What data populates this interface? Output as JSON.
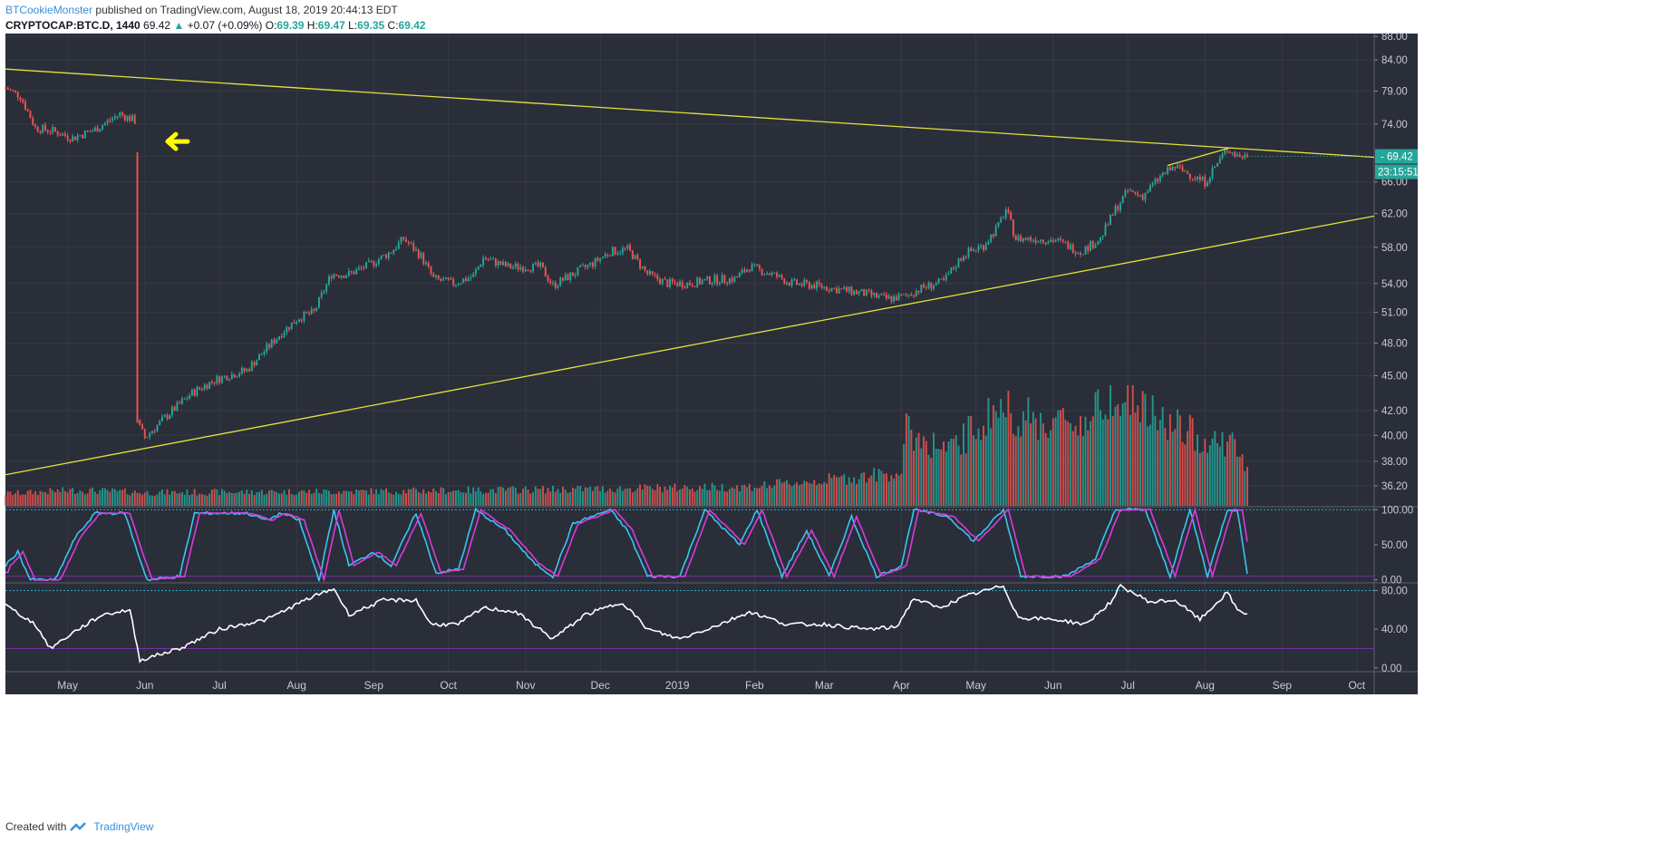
{
  "header": {
    "author": "BTCookieMonster",
    "published": "published on TradingView.com, August 18, 2019 20:44:13 EDT",
    "symbol": "CRYPTOCAP:BTC.D, 1440",
    "last": "69.42",
    "change_arrow": "▲",
    "change": "+0.07 (+0.09%)",
    "o_label": "O:",
    "o": "69.39",
    "h_label": "H:",
    "h": "69.47",
    "l_label": "L:",
    "l": "69.35",
    "c_label": "C:",
    "c": "69.42"
  },
  "footer": {
    "created_with": "Created with",
    "brand": "TradingView",
    "logo_icon": "tradingview-logo-icon"
  },
  "price_tag": {
    "value": "69.42",
    "countdown": "23:15:51",
    "color": "#26a69a"
  },
  "colors": {
    "background": "#2a2e39",
    "up": "#26a69a",
    "down": "#ef5350",
    "trendline": "#e3e33a",
    "stoch_k": "#39c6f0",
    "stoch_d": "#d93ae0",
    "rsi": "#ffffff",
    "arrow": "#ffff00"
  },
  "annotation": {
    "type": "arrow",
    "icon": "left-arrow-icon",
    "color": "#ffff00"
  },
  "chart_data": {
    "type": "candlestick",
    "title": "",
    "y_scale": "log",
    "ylim": [
      34.8,
      88.5
    ],
    "y_ticks": [
      "88.00",
      "84.00",
      "79.00",
      "74.00",
      "69.42",
      "66.00",
      "62.00",
      "58.00",
      "54.00",
      "51.00",
      "48.00",
      "45.00",
      "42.00",
      "40.00",
      "38.00",
      "36.20"
    ],
    "x_ticks": [
      "May",
      "Jun",
      "Jul",
      "Aug",
      "Sep",
      "Oct",
      "Nov",
      "Dec",
      "2019",
      "Feb",
      "Mar",
      "Apr",
      "May",
      "Jun",
      "Jul",
      "Aug",
      "Sep",
      "Oct"
    ],
    "x_ticks_dates": [
      "2018-05-01",
      "2018-06-01",
      "2018-07-01",
      "2018-08-01",
      "2018-09-01",
      "2018-10-01",
      "2018-11-01",
      "2018-12-01",
      "2019-01-01",
      "2019-02-01",
      "2019-03-01",
      "2019-04-01",
      "2019-05-01",
      "2019-06-01",
      "2019-07-01",
      "2019-08-01",
      "2019-09-01",
      "2019-10-01"
    ],
    "x_range": [
      "2018-04-06",
      "2019-10-08"
    ],
    "price_series": {
      "name": "BTC.D",
      "anchors": [
        [
          "2018-04-06",
          79.5
        ],
        [
          "2018-04-12",
          78.2
        ],
        [
          "2018-04-18",
          73.5
        ],
        [
          "2018-04-25",
          73.0
        ],
        [
          "2018-05-03",
          72.0
        ],
        [
          "2018-05-12",
          73.2
        ],
        [
          "2018-05-22",
          75.5
        ],
        [
          "2018-05-28",
          74.5
        ],
        [
          "2018-05-29",
          41.0
        ],
        [
          "2018-06-01",
          39.8
        ],
        [
          "2018-06-10",
          41.6
        ],
        [
          "2018-06-20",
          43.5
        ],
        [
          "2018-06-28",
          44.5
        ],
        [
          "2018-07-04",
          45.0
        ],
        [
          "2018-07-12",
          45.5
        ],
        [
          "2018-07-20",
          47.5
        ],
        [
          "2018-07-26",
          49.0
        ],
        [
          "2018-08-02",
          50.5
        ],
        [
          "2018-08-08",
          51.0
        ],
        [
          "2018-08-15",
          55.0
        ],
        [
          "2018-08-22",
          55.0
        ],
        [
          "2018-08-30",
          56.0
        ],
        [
          "2018-09-08",
          57.5
        ],
        [
          "2018-09-13",
          59.0
        ],
        [
          "2018-09-20",
          57.0
        ],
        [
          "2018-09-25",
          54.5
        ],
        [
          "2018-10-03",
          54.0
        ],
        [
          "2018-10-11",
          54.8
        ],
        [
          "2018-10-15",
          56.8
        ],
        [
          "2018-10-25",
          55.8
        ],
        [
          "2018-11-07",
          55.8
        ],
        [
          "2018-11-12",
          53.8
        ],
        [
          "2018-11-20",
          55.0
        ],
        [
          "2018-11-28",
          56.2
        ],
        [
          "2018-12-05",
          57.5
        ],
        [
          "2018-12-12",
          57.8
        ],
        [
          "2018-12-20",
          55.0
        ],
        [
          "2018-12-28",
          54.0
        ],
        [
          "2019-01-06",
          54.0
        ],
        [
          "2019-01-15",
          54.4
        ],
        [
          "2019-01-24",
          54.5
        ],
        [
          "2019-01-30",
          55.8
        ],
        [
          "2019-02-08",
          55.0
        ],
        [
          "2019-02-16",
          54.0
        ],
        [
          "2019-02-25",
          53.8
        ],
        [
          "2019-03-06",
          53.4
        ],
        [
          "2019-03-16",
          53.0
        ],
        [
          "2019-03-26",
          52.4
        ],
        [
          "2019-04-02",
          52.6
        ],
        [
          "2019-04-10",
          53.6
        ],
        [
          "2019-04-18",
          54.2
        ],
        [
          "2019-04-26",
          57.2
        ],
        [
          "2019-05-04",
          58.2
        ],
        [
          "2019-05-10",
          60.5
        ],
        [
          "2019-05-13",
          62.5
        ],
        [
          "2019-05-17",
          59.0
        ],
        [
          "2019-05-24",
          59.0
        ],
        [
          "2019-06-02",
          58.8
        ],
        [
          "2019-06-12",
          57.5
        ],
        [
          "2019-06-20",
          59.0
        ],
        [
          "2019-06-26",
          62.5
        ],
        [
          "2019-07-01",
          64.8
        ],
        [
          "2019-07-07",
          64.2
        ],
        [
          "2019-07-15",
          67.0
        ],
        [
          "2019-07-20",
          68.0
        ],
        [
          "2019-07-26",
          67.0
        ],
        [
          "2019-08-01",
          66.0
        ],
        [
          "2019-08-06",
          68.5
        ],
        [
          "2019-08-10",
          70.5
        ],
        [
          "2019-08-14",
          69.5
        ],
        [
          "2019-08-18",
          69.42
        ]
      ]
    },
    "trendlines": [
      {
        "name": "upper-resistance",
        "start": [
          "2018-04-06",
          82.5
        ],
        "end": [
          "2019-10-08",
          69.3
        ]
      },
      {
        "name": "lower-support",
        "start": [
          "2018-04-06",
          37.0
        ],
        "end": [
          "2019-10-08",
          61.7
        ]
      },
      {
        "name": "short-rising-highs",
        "start": [
          "2019-07-17",
          68.2
        ],
        "end": [
          "2019-08-11",
          70.6
        ]
      }
    ],
    "volume": {
      "anchors": [
        [
          "2018-04-06",
          0.1
        ],
        [
          "2018-05-05",
          0.13
        ],
        [
          "2018-06-01",
          0.11
        ],
        [
          "2018-09-01",
          0.12
        ],
        [
          "2018-12-01",
          0.14
        ],
        [
          "2019-02-01",
          0.16
        ],
        [
          "2019-03-15",
          0.24
        ],
        [
          "2019-04-01",
          0.28
        ],
        [
          "2019-04-03",
          0.62
        ],
        [
          "2019-04-20",
          0.45
        ],
        [
          "2019-05-10",
          0.82
        ],
        [
          "2019-05-25",
          0.7
        ],
        [
          "2019-06-15",
          0.7
        ],
        [
          "2019-06-26",
          1.0
        ],
        [
          "2019-07-10",
          0.75
        ],
        [
          "2019-08-01",
          0.55
        ],
        [
          "2019-08-12",
          0.52
        ],
        [
          "2019-08-18",
          0.3
        ]
      ]
    },
    "stoch_rsi": {
      "y_ticks": [
        "100.00",
        "50.00",
        "0.00"
      ],
      "ylim": [
        -3,
        103
      ],
      "bands": [
        100,
        5
      ],
      "series": [
        {
          "color": "#39c6f0"
        },
        {
          "color": "#d93ae0"
        }
      ],
      "anchors": [
        [
          "2018-04-06",
          20
        ],
        [
          "2018-04-11",
          40
        ],
        [
          "2018-04-16",
          0
        ],
        [
          "2018-04-26",
          0
        ],
        [
          "2018-05-04",
          60
        ],
        [
          "2018-05-12",
          95
        ],
        [
          "2018-05-24",
          95
        ],
        [
          "2018-05-29",
          40
        ],
        [
          "2018-06-02",
          0
        ],
        [
          "2018-06-15",
          5
        ],
        [
          "2018-06-21",
          95
        ],
        [
          "2018-07-12",
          95
        ],
        [
          "2018-07-20",
          85
        ],
        [
          "2018-07-26",
          95
        ],
        [
          "2018-08-02",
          85
        ],
        [
          "2018-08-10",
          0
        ],
        [
          "2018-08-16",
          100
        ],
        [
          "2018-08-22",
          20
        ],
        [
          "2018-09-01",
          40
        ],
        [
          "2018-09-08",
          20
        ],
        [
          "2018-09-18",
          95
        ],
        [
          "2018-09-26",
          10
        ],
        [
          "2018-10-05",
          15
        ],
        [
          "2018-10-12",
          100
        ],
        [
          "2018-10-24",
          70
        ],
        [
          "2018-11-04",
          25
        ],
        [
          "2018-11-12",
          5
        ],
        [
          "2018-11-20",
          80
        ],
        [
          "2018-12-05",
          100
        ],
        [
          "2018-12-12",
          70
        ],
        [
          "2018-12-20",
          5
        ],
        [
          "2019-01-02",
          5
        ],
        [
          "2019-01-12",
          100
        ],
        [
          "2019-01-26",
          50
        ],
        [
          "2019-02-02",
          100
        ],
        [
          "2019-02-12",
          5
        ],
        [
          "2019-02-22",
          70
        ],
        [
          "2019-03-03",
          5
        ],
        [
          "2019-03-12",
          90
        ],
        [
          "2019-03-22",
          5
        ],
        [
          "2019-04-01",
          20
        ],
        [
          "2019-04-06",
          100
        ],
        [
          "2019-04-20",
          90
        ],
        [
          "2019-04-30",
          55
        ],
        [
          "2019-05-12",
          100
        ],
        [
          "2019-05-19",
          5
        ],
        [
          "2019-06-06",
          5
        ],
        [
          "2019-06-18",
          30
        ],
        [
          "2019-06-26",
          100
        ],
        [
          "2019-07-08",
          100
        ],
        [
          "2019-07-18",
          5
        ],
        [
          "2019-07-26",
          100
        ],
        [
          "2019-08-02",
          5
        ],
        [
          "2019-08-10",
          100
        ],
        [
          "2019-08-14",
          100
        ],
        [
          "2019-08-18",
          10
        ]
      ]
    },
    "rsi": {
      "y_ticks": [
        "80.00",
        "40.00",
        "0.00"
      ],
      "ylim": [
        -3,
        87
      ],
      "bands": [
        80,
        20
      ],
      "series": [
        {
          "color": "#ffffff"
        }
      ],
      "anchors": [
        [
          "2018-04-06",
          65
        ],
        [
          "2018-04-18",
          45
        ],
        [
          "2018-04-24",
          20
        ],
        [
          "2018-05-04",
          38
        ],
        [
          "2018-05-15",
          55
        ],
        [
          "2018-05-26",
          60
        ],
        [
          "2018-05-30",
          8
        ],
        [
          "2018-06-15",
          20
        ],
        [
          "2018-07-01",
          40
        ],
        [
          "2018-07-20",
          50
        ],
        [
          "2018-08-06",
          72
        ],
        [
          "2018-08-16",
          82
        ],
        [
          "2018-08-22",
          55
        ],
        [
          "2018-09-05",
          70
        ],
        [
          "2018-09-18",
          70
        ],
        [
          "2018-09-24",
          45
        ],
        [
          "2018-10-05",
          45
        ],
        [
          "2018-10-15",
          62
        ],
        [
          "2018-10-28",
          58
        ],
        [
          "2018-11-12",
          30
        ],
        [
          "2018-11-25",
          55
        ],
        [
          "2018-12-10",
          68
        ],
        [
          "2018-12-20",
          40
        ],
        [
          "2019-01-02",
          30
        ],
        [
          "2019-01-18",
          45
        ],
        [
          "2019-01-30",
          58
        ],
        [
          "2019-02-14",
          45
        ],
        [
          "2019-03-01",
          45
        ],
        [
          "2019-03-18",
          40
        ],
        [
          "2019-03-30",
          42
        ],
        [
          "2019-04-06",
          72
        ],
        [
          "2019-04-16",
          62
        ],
        [
          "2019-04-28",
          75
        ],
        [
          "2019-05-12",
          85
        ],
        [
          "2019-05-18",
          52
        ],
        [
          "2019-06-02",
          50
        ],
        [
          "2019-06-14",
          45
        ],
        [
          "2019-06-25",
          70
        ],
        [
          "2019-06-28",
          85
        ],
        [
          "2019-07-10",
          68
        ],
        [
          "2019-07-20",
          70
        ],
        [
          "2019-07-30",
          50
        ],
        [
          "2019-08-10",
          78
        ],
        [
          "2019-08-14",
          60
        ],
        [
          "2019-08-18",
          56
        ]
      ]
    }
  }
}
